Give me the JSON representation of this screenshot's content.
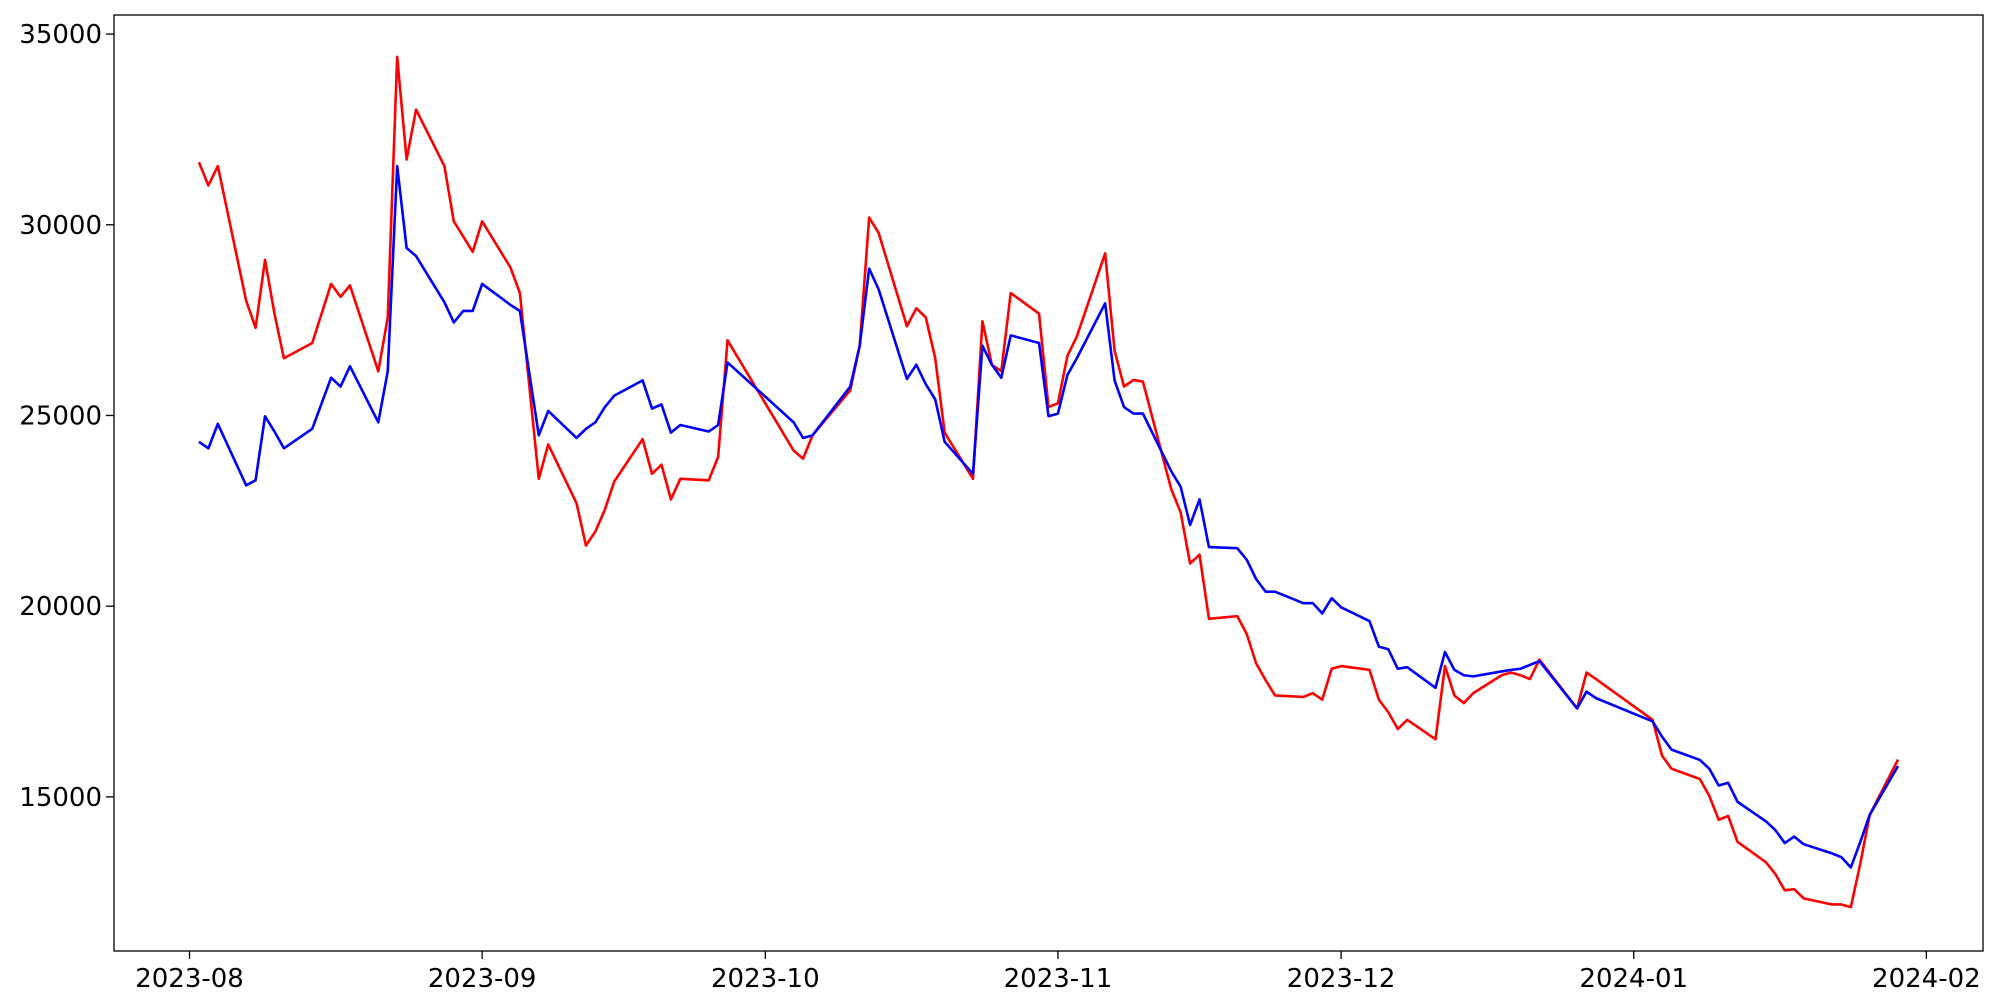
{
  "chart_data": {
    "type": "line",
    "x": [
      1,
      2,
      3,
      6,
      7,
      8,
      9,
      10,
      13,
      15,
      16,
      17,
      20,
      21,
      22,
      23,
      24,
      27,
      28,
      29,
      30,
      31,
      34,
      35,
      37,
      38,
      41,
      42,
      43,
      44,
      45,
      48,
      49,
      50,
      51,
      52,
      55,
      56,
      57,
      64,
      65,
      66,
      70,
      71,
      72,
      73,
      76,
      77,
      78,
      79,
      80,
      83,
      84,
      85,
      86,
      87,
      90,
      91,
      92,
      93,
      94,
      97,
      98,
      99,
      100,
      101,
      104,
      105,
      106,
      107,
      108,
      111,
      112,
      113,
      114,
      115,
      118,
      119,
      120,
      121,
      122,
      125,
      126,
      127,
      128,
      129,
      132,
      133,
      134,
      135,
      136,
      139,
      140,
      141,
      142,
      143,
      147,
      148,
      149,
      155,
      156,
      157,
      160,
      161,
      162,
      163,
      164,
      167,
      168,
      169,
      170,
      171,
      174,
      175,
      176,
      177,
      178,
      181
    ],
    "series": [
      {
        "color": "#ff0000",
        "values": [
          31640,
          31030,
          31540,
          28010,
          27300,
          29080,
          27670,
          26500,
          26900,
          28450,
          28110,
          28410,
          26160,
          27570,
          34400,
          31710,
          33020,
          31540,
          30090,
          29690,
          29290,
          30090,
          28880,
          28210,
          23340,
          24240,
          22700,
          21590,
          21960,
          22530,
          23270,
          24380,
          23470,
          23710,
          22800,
          23340,
          23300,
          23910,
          26970,
          24080,
          23870,
          24480,
          25660,
          26830,
          30190,
          29790,
          27340,
          27810,
          27570,
          26500,
          24550,
          23340,
          27470,
          26330,
          26160,
          28210,
          27670,
          25220,
          25320,
          26560,
          27070,
          29250,
          26700,
          25760,
          25930,
          25890,
          23070,
          22460,
          21120,
          21350,
          19670,
          19740,
          19270,
          18500,
          18060,
          17660,
          17620,
          17720,
          17550,
          18360,
          18430,
          18330,
          17550,
          17220,
          16780,
          17020,
          16510,
          18430,
          17660,
          17460,
          17720,
          18190,
          18260,
          18190,
          18090,
          18600,
          17320,
          18260,
          18090,
          17020,
          16080,
          15740,
          15470,
          15030,
          14400,
          14500,
          13820,
          13290,
          12980,
          12550,
          12580,
          12340,
          12180,
          12180,
          12110,
          13250,
          14530,
          15980
        ]
      },
      {
        "color": "#0000ff",
        "values": [
          24310,
          24140,
          24780,
          23170,
          23300,
          24980,
          24580,
          24140,
          24650,
          25990,
          25760,
          26290,
          24820,
          26160,
          31540,
          29390,
          29180,
          27970,
          27440,
          27740,
          27740,
          28450,
          27900,
          27740,
          24480,
          25120,
          24410,
          24650,
          24820,
          25220,
          25520,
          25920,
          25180,
          25290,
          24550,
          24750,
          24580,
          24750,
          26390,
          24820,
          24410,
          24480,
          25760,
          26830,
          28850,
          28310,
          25960,
          26330,
          25820,
          25420,
          24310,
          23470,
          26830,
          26330,
          25990,
          27100,
          26900,
          24980,
          25050,
          26060,
          26500,
          27940,
          25920,
          25220,
          25050,
          25050,
          23540,
          23130,
          22130,
          22800,
          21550,
          21520,
          21220,
          20710,
          20380,
          20380,
          20080,
          20080,
          19810,
          20210,
          19970,
          19610,
          18940,
          18870,
          18360,
          18400,
          17860,
          18800,
          18330,
          18190,
          18160,
          18290,
          18330,
          18360,
          18460,
          18560,
          17320,
          17760,
          17590,
          16980,
          16580,
          16240,
          15970,
          15740,
          15300,
          15370,
          14870,
          14360,
          14130,
          13790,
          13960,
          13760,
          13520,
          13420,
          13150,
          13820,
          14530,
          15810
        ]
      }
    ],
    "xlim": [
      -8,
      190
    ],
    "xticks": [
      {
        "value": 0,
        "label": "2023-08"
      },
      {
        "value": 31,
        "label": "2023-09"
      },
      {
        "value": 61,
        "label": "2023-10"
      },
      {
        "value": 92,
        "label": "2023-11"
      },
      {
        "value": 122,
        "label": "2023-12"
      },
      {
        "value": 153,
        "label": "2024-01"
      },
      {
        "value": 184,
        "label": "2024-02"
      }
    ],
    "ylim": [
      10960,
      35500
    ],
    "yticks": [
      15000,
      20000,
      25000,
      30000,
      35000
    ]
  }
}
